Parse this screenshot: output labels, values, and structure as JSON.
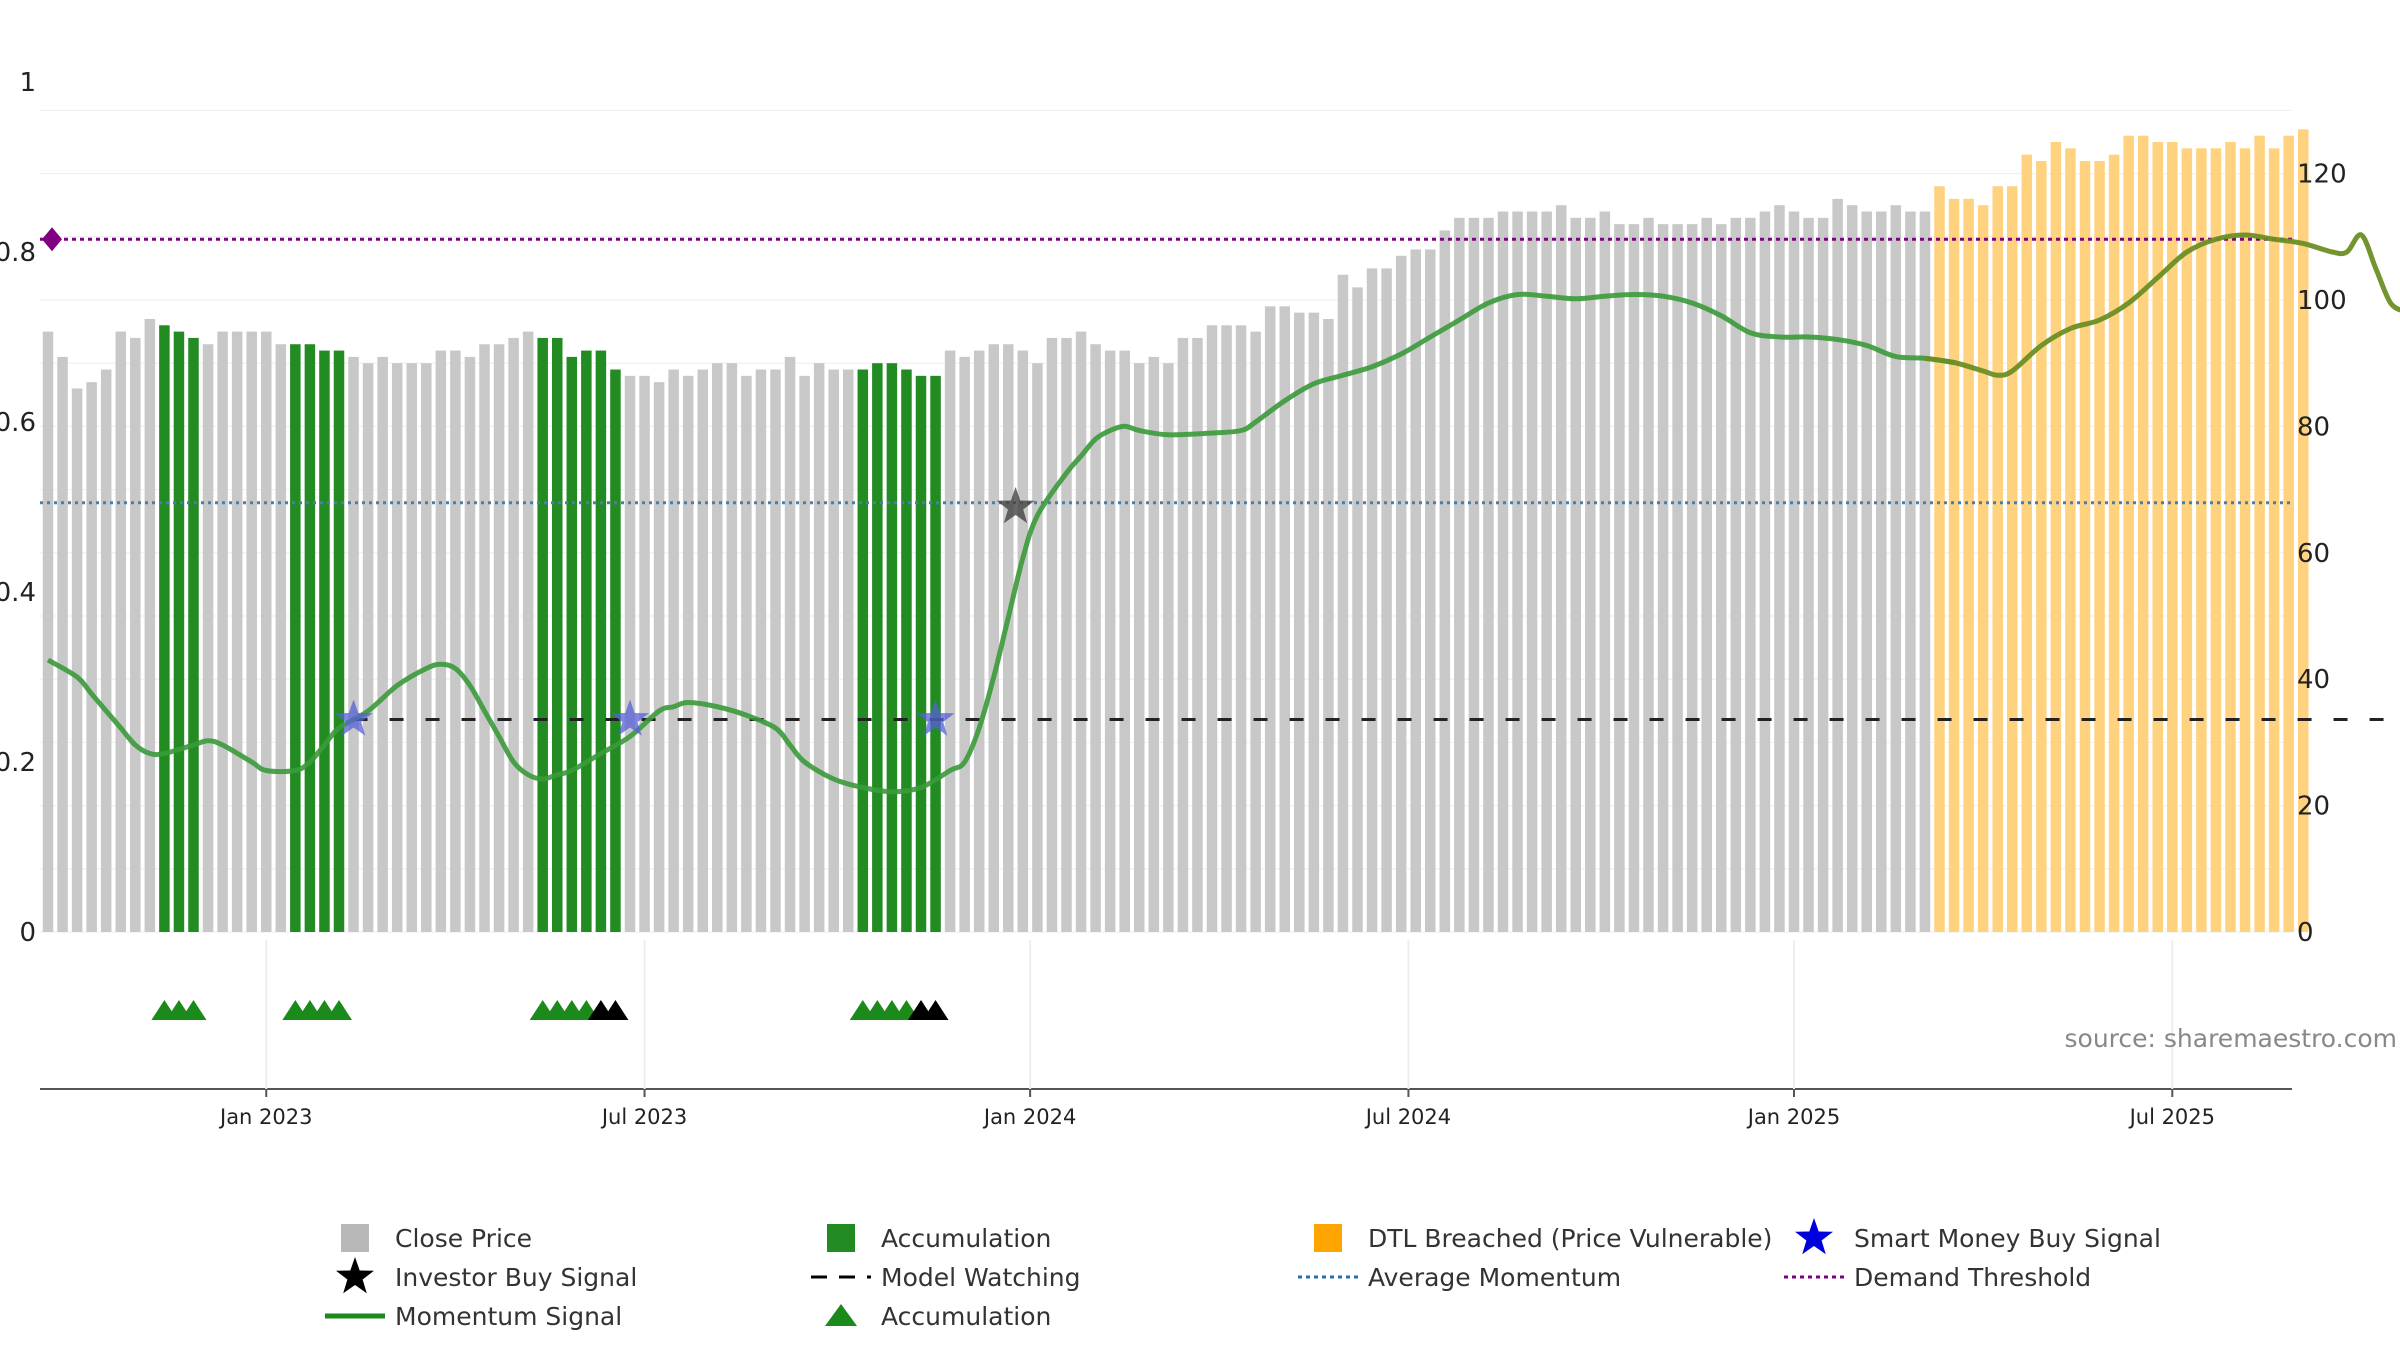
{
  "chart_data": {
    "type": "bar",
    "source_note": "source: sharemaestro.com",
    "left_axis": {
      "ylim": [
        0,
        1
      ],
      "ticks": [
        "0",
        "0.2",
        "0.4",
        "0.6",
        "0.8",
        "1"
      ],
      "tick_values": [
        0,
        0.2,
        0.4,
        0.6,
        0.8,
        1
      ]
    },
    "right_axis": {
      "ylim": [
        0,
        135
      ],
      "ticks": [
        "0",
        "20",
        "40",
        "60",
        "80",
        "100",
        "120"
      ],
      "tick_values": [
        0,
        20,
        40,
        60,
        80,
        100,
        120
      ]
    },
    "x_ticks": [
      {
        "label": "Jan 2023",
        "week": 15
      },
      {
        "label": "Jul 2023",
        "week": 41
      },
      {
        "label": "Jan 2024",
        "week": 67.5
      },
      {
        "label": "Jul 2024",
        "week": 93.5
      },
      {
        "label": "Jan 2025",
        "week": 120
      },
      {
        "label": "Jul 2025",
        "week": 146
      }
    ],
    "close_price": [
      95,
      91,
      86,
      87,
      89,
      95,
      94,
      97,
      96,
      95,
      94,
      93,
      95,
      95,
      95,
      95,
      93,
      93,
      93,
      92,
      92,
      91,
      90,
      91,
      90,
      90,
      90,
      92,
      92,
      91,
      93,
      93,
      94,
      95,
      94,
      94,
      91,
      92,
      92,
      89,
      88,
      88,
      87,
      89,
      88,
      89,
      90,
      90,
      88,
      89,
      89,
      91,
      88,
      90,
      89,
      89,
      89,
      90,
      90,
      89,
      88,
      88,
      92,
      91,
      92,
      93,
      93,
      92,
      90,
      94,
      94,
      95,
      93,
      92,
      92,
      90,
      91,
      90,
      94,
      94,
      96,
      96,
      96,
      95,
      99,
      99,
      98,
      98,
      97,
      104,
      102,
      105,
      105,
      107,
      108,
      108,
      111,
      113,
      113,
      113,
      114,
      114,
      114,
      114,
      115,
      113,
      113,
      114,
      112,
      112,
      113,
      112,
      112,
      112,
      113,
      112,
      113,
      113,
      114,
      115,
      114,
      113,
      113,
      116,
      115,
      114,
      114,
      115,
      114,
      114,
      118,
      116,
      116,
      115,
      118,
      118,
      123,
      122,
      125,
      124,
      122,
      122,
      123,
      126,
      126,
      125,
      125,
      124,
      124,
      124,
      125,
      124,
      126,
      124,
      126,
      127
    ],
    "accumulation_weeks": [
      8,
      9,
      10,
      17,
      18,
      19,
      20,
      34,
      35,
      36,
      37,
      38,
      39,
      56,
      57,
      58,
      59,
      60,
      61
    ],
    "dtl_breach_from_week": 130,
    "momentum": [
      [
        0,
        0.32
      ],
      [
        2,
        0.3
      ],
      [
        3,
        0.28
      ],
      [
        4,
        0.26
      ],
      [
        5,
        0.24
      ],
      [
        6,
        0.22
      ],
      [
        7,
        0.21
      ],
      [
        8,
        0.21
      ],
      [
        10,
        0.22
      ],
      [
        11,
        0.225
      ],
      [
        12,
        0.22
      ],
      [
        14,
        0.2
      ],
      [
        15,
        0.19
      ],
      [
        17,
        0.19
      ],
      [
        18,
        0.2
      ],
      [
        19,
        0.22
      ],
      [
        20,
        0.24
      ],
      [
        22,
        0.26
      ],
      [
        24,
        0.29
      ],
      [
        26,
        0.31
      ],
      [
        27,
        0.315
      ],
      [
        28,
        0.31
      ],
      [
        29,
        0.29
      ],
      [
        30,
        0.26
      ],
      [
        31,
        0.23
      ],
      [
        32,
        0.2
      ],
      [
        33,
        0.185
      ],
      [
        34,
        0.18
      ],
      [
        35,
        0.185
      ],
      [
        36,
        0.19
      ],
      [
        38,
        0.21
      ],
      [
        40,
        0.23
      ],
      [
        42,
        0.26
      ],
      [
        43,
        0.265
      ],
      [
        44,
        0.27
      ],
      [
        46,
        0.265
      ],
      [
        48,
        0.255
      ],
      [
        50,
        0.24
      ],
      [
        51,
        0.22
      ],
      [
        52,
        0.2
      ],
      [
        54,
        0.18
      ],
      [
        56,
        0.17
      ],
      [
        58,
        0.165
      ],
      [
        60,
        0.17
      ],
      [
        62,
        0.19
      ],
      [
        63,
        0.2
      ],
      [
        64,
        0.24
      ],
      [
        65,
        0.3
      ],
      [
        66,
        0.37
      ],
      [
        67,
        0.44
      ],
      [
        68,
        0.49
      ],
      [
        70,
        0.54
      ],
      [
        71,
        0.56
      ],
      [
        72,
        0.58
      ],
      [
        73,
        0.59
      ],
      [
        74,
        0.595
      ],
      [
        75,
        0.59
      ],
      [
        77,
        0.585
      ],
      [
        80,
        0.587
      ],
      [
        82,
        0.59
      ],
      [
        83,
        0.6
      ],
      [
        85,
        0.625
      ],
      [
        87,
        0.645
      ],
      [
        89,
        0.655
      ],
      [
        91,
        0.665
      ],
      [
        93,
        0.68
      ],
      [
        95,
        0.7
      ],
      [
        97,
        0.72
      ],
      [
        99,
        0.74
      ],
      [
        101,
        0.75
      ],
      [
        103,
        0.748
      ],
      [
        105,
        0.745
      ],
      [
        107,
        0.748
      ],
      [
        109,
        0.75
      ],
      [
        111,
        0.748
      ],
      [
        113,
        0.74
      ],
      [
        115,
        0.725
      ],
      [
        117,
        0.705
      ],
      [
        119,
        0.7
      ],
      [
        121,
        0.7
      ],
      [
        123,
        0.697
      ],
      [
        125,
        0.69
      ],
      [
        127,
        0.677
      ],
      [
        129,
        0.675
      ],
      [
        131,
        0.67
      ],
      [
        133,
        0.66
      ],
      [
        134,
        0.655
      ],
      [
        135,
        0.66
      ],
      [
        137,
        0.69
      ],
      [
        139,
        0.71
      ],
      [
        141,
        0.72
      ],
      [
        143,
        0.74
      ],
      [
        145,
        0.77
      ],
      [
        147,
        0.8
      ],
      [
        149,
        0.815
      ],
      [
        151,
        0.82
      ],
      [
        153,
        0.815
      ],
      [
        155,
        0.81
      ],
      [
        157,
        0.8
      ],
      [
        158,
        0.8
      ],
      [
        159,
        0.82
      ],
      [
        160,
        0.78
      ],
      [
        161,
        0.74
      ],
      [
        162,
        0.73
      ]
    ],
    "model_watching": {
      "level": 0.25,
      "from_week": 21,
      "to_week": 161.5
    },
    "average_momentum": 0.505,
    "demand_threshold": 0.815,
    "smart_money_signals": [
      [
        21,
        0.25
      ],
      [
        40,
        0.25
      ],
      [
        61,
        0.25
      ]
    ],
    "investor_buy_signals": [
      [
        66.5,
        0.5
      ]
    ],
    "accumulation_markers_green": [
      8,
      9,
      10,
      17,
      18,
      19,
      20,
      34,
      35,
      36,
      37,
      56,
      57,
      58,
      59
    ],
    "accumulation_markers_black": [
      38,
      39,
      60,
      61
    ],
    "legend": [
      {
        "label": "Close Price",
        "symbol": "square",
        "color": "#b8b8b8"
      },
      {
        "label": "Accumulation",
        "symbol": "square",
        "color": "#228b22"
      },
      {
        "label": "DTL Breached (Price Vulnerable)",
        "symbol": "square",
        "color": "#ffa500"
      },
      {
        "label": "Smart Money Buy Signal",
        "symbol": "star",
        "color": "#0000dd"
      },
      {
        "label": "Investor Buy Signal",
        "symbol": "star",
        "color": "#000000"
      },
      {
        "label": "Model Watching",
        "symbol": "dash",
        "color": "#000000"
      },
      {
        "label": "Average Momentum",
        "symbol": "dots",
        "color": "#2a6fa8"
      },
      {
        "label": "Demand Threshold",
        "symbol": "dots",
        "color": "#800080"
      },
      {
        "label": "Momentum Signal",
        "symbol": "line",
        "color": "#1a8a1a"
      },
      {
        "label": "Accumulation",
        "symbol": "triangle",
        "color": "#1a8a1a"
      }
    ],
    "colors": {
      "close": "#c8c8c8",
      "accumulation": "#228b22",
      "dtl": "#ffd27f",
      "momentum": "#3a9a3a",
      "momentum_dtl": "#6b8e23",
      "avg_momentum": "#4a7fa8",
      "demand": "#800080",
      "smart_star": "#5560d8",
      "investor_star": "#444444"
    }
  }
}
